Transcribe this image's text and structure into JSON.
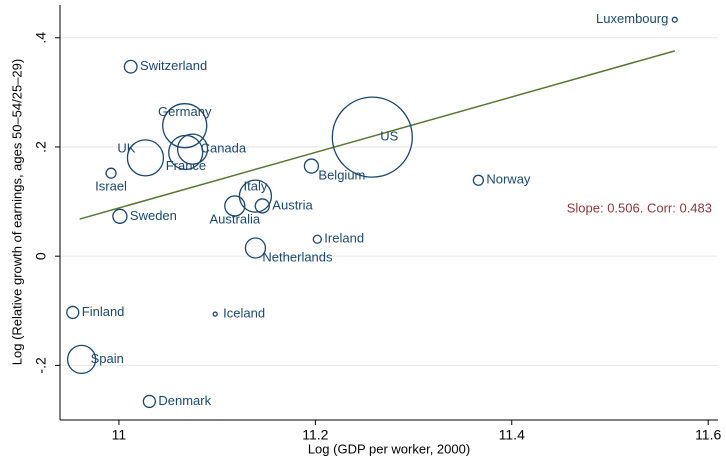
{
  "chart_data": {
    "type": "scatter",
    "x_label": "Log (GDP per worker, 2000)",
    "y_label": "Log (Relative growth of earnings, ages 50–54/25–29)",
    "annotation": "Slope: 0.506.  Corr: 0.483",
    "xlim": [
      10.94,
      11.61
    ],
    "ylim": [
      -0.3,
      0.46
    ],
    "xticks": [
      11,
      11.2,
      11.4,
      11.6
    ],
    "yticks": [
      {
        "value": -0.2,
        "label": "-.2"
      },
      0,
      {
        "value": 0.2,
        "label": ".2"
      },
      {
        "value": 0.4,
        "label": ".4"
      }
    ],
    "grid": true,
    "color": "#1a476f",
    "line_color": "#55752f",
    "annotation_color": "#90353b",
    "series": [
      {
        "labels": [
          "Luxembourg",
          "Switzerland",
          "Germany",
          "UK",
          "Canada",
          "France",
          "Israel",
          "US",
          "Belgium",
          "Norway",
          "Italy",
          "Australia",
          "Austria",
          "Sweden",
          "Ireland",
          "Netherlands",
          "Finland",
          "Iceland",
          "Spain",
          "Denmark"
        ],
        "x": [
          11.566,
          11.012,
          11.067,
          11.027,
          11.075,
          11.068,
          10.992,
          11.258,
          11.196,
          11.366,
          11.139,
          11.118,
          11.146,
          11.001,
          11.202,
          11.139,
          10.953,
          11.098,
          10.962,
          11.031
        ],
        "values": [
          0.433,
          0.347,
          0.239,
          0.18,
          0.196,
          0.19,
          0.152,
          0.218,
          0.165,
          0.139,
          0.11,
          0.092,
          0.092,
          0.073,
          0.031,
          0.015,
          -0.103,
          -0.106,
          -0.189,
          -0.266
        ],
        "sizes": [
          6,
          40,
          484,
          324,
          225,
          289,
          25,
          1600,
          49,
          25,
          256,
          100,
          49,
          49,
          16,
          100,
          36,
          4,
          196,
          36
        ]
      }
    ],
    "fit_line": {
      "x": [
        10.96,
        11.566
      ],
      "y": [
        0.068,
        0.376
      ]
    }
  }
}
